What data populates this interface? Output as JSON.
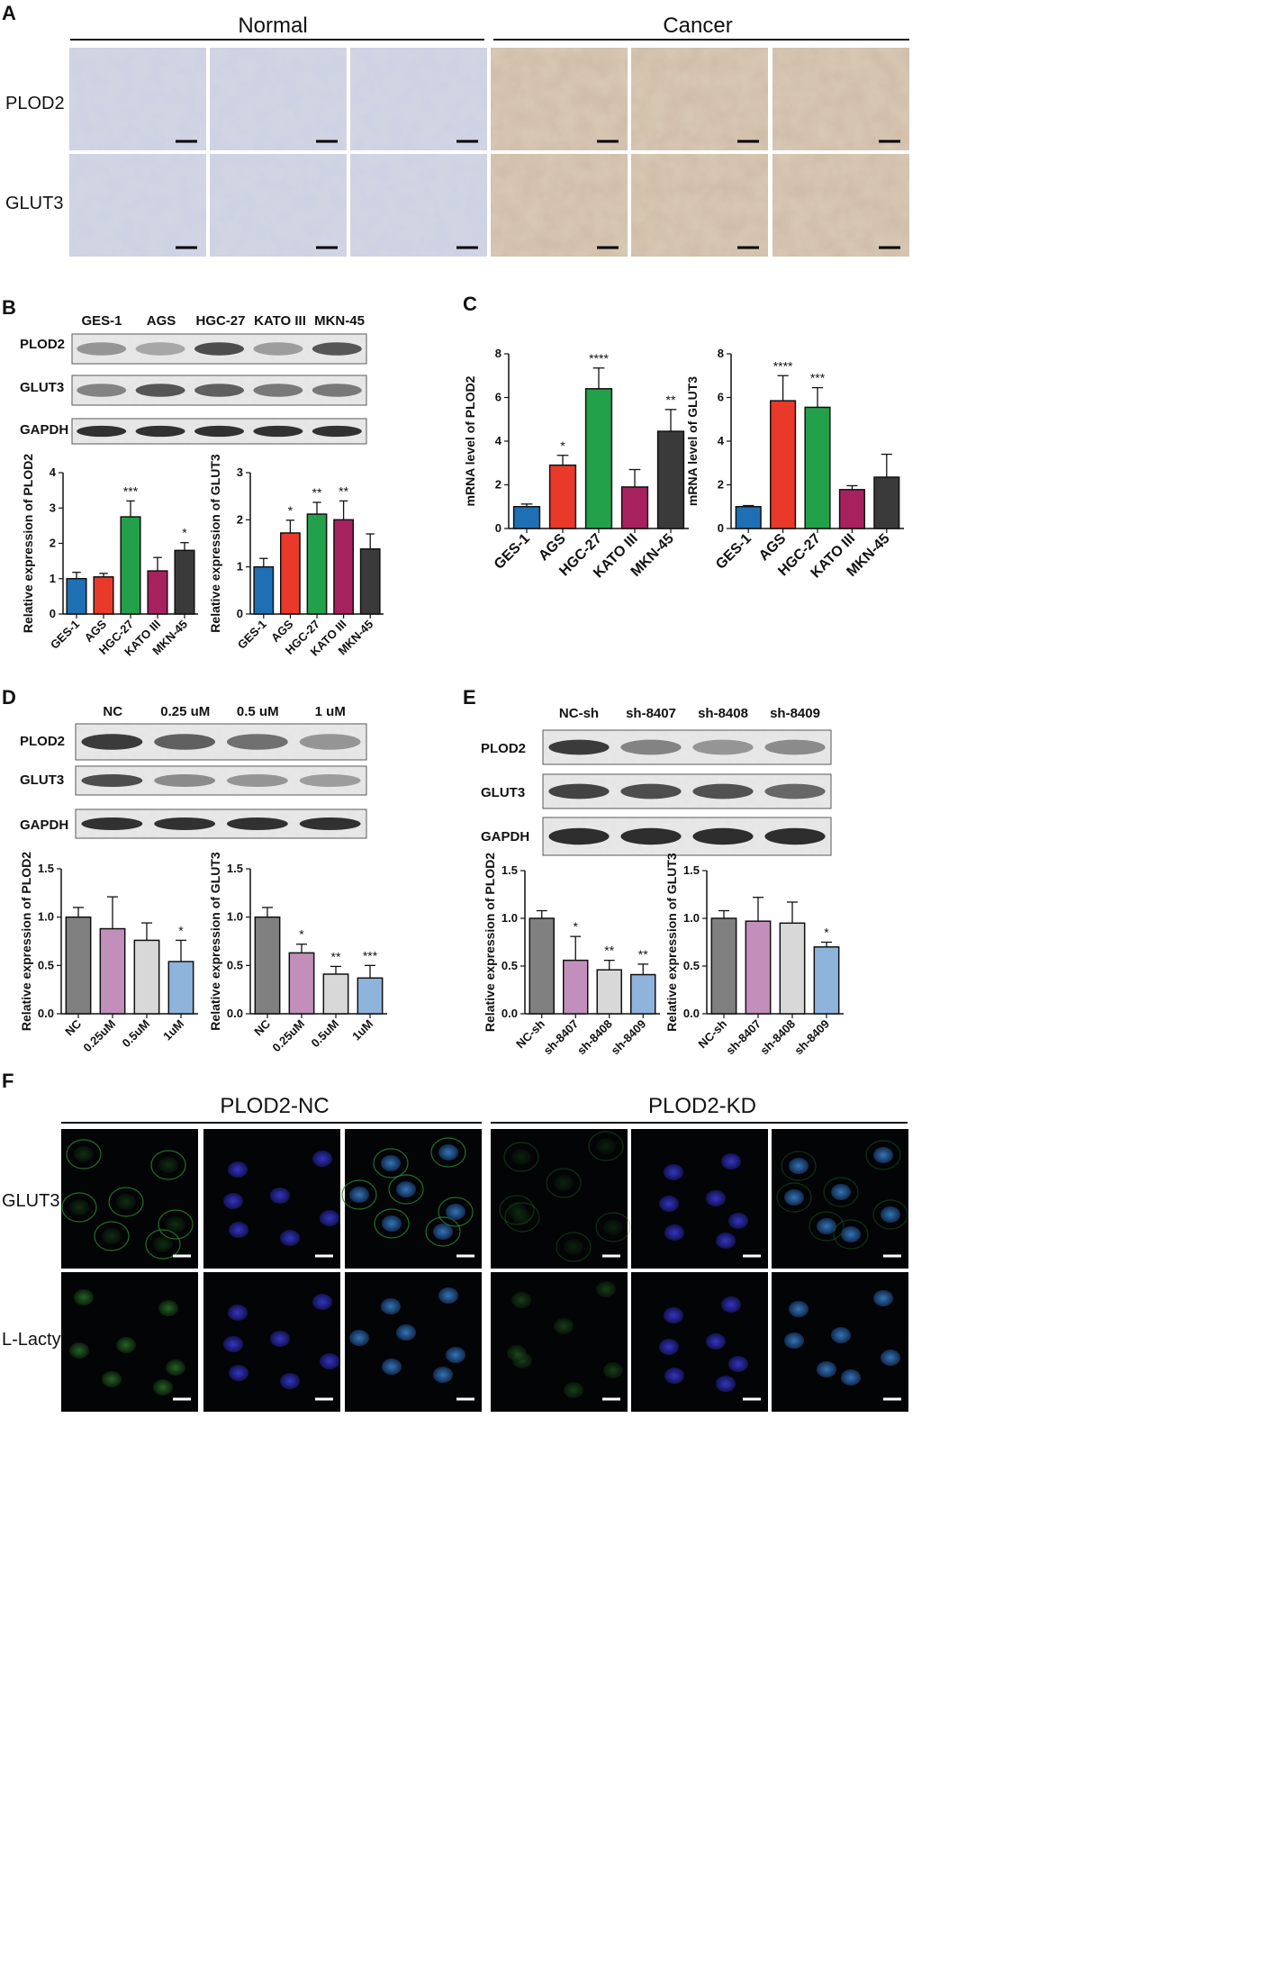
{
  "panelA": {
    "letter": "A",
    "groups": [
      "Normal",
      "Cancer"
    ],
    "rows": [
      "PLOD2",
      "GLUT3"
    ]
  },
  "panelB": {
    "letter": "B",
    "lanes": [
      "GES-1",
      "AGS",
      "HGC-27",
      "KATO III",
      "MKN-45"
    ],
    "blots": [
      "PLOD2",
      "GLUT3",
      "GAPDH"
    ]
  },
  "panelC": {
    "letter": "C"
  },
  "panelD": {
    "letter": "D",
    "lanes": [
      "NC",
      "0.25 uM",
      "0.5 uM",
      "1 uM"
    ],
    "blots": [
      "PLOD2",
      "GLUT3",
      "GAPDH"
    ]
  },
  "panelE": {
    "letter": "E",
    "lanes": [
      "NC-sh",
      "sh-8407",
      "sh-8408",
      "sh-8409"
    ],
    "blots": [
      "PLOD2",
      "GLUT3",
      "GAPDH"
    ]
  },
  "panelF": {
    "letter": "F",
    "groups": [
      "PLOD2-NC",
      "PLOD2-KD"
    ],
    "rows": [
      "GLUT3",
      "L-Lactyl"
    ]
  },
  "chart_data": [
    {
      "id": "B1",
      "type": "bar",
      "categories": [
        "GES-1",
        "AGS",
        "HGC-27",
        "KATO III",
        "MKN-45"
      ],
      "values": [
        1.0,
        1.05,
        2.75,
        1.22,
        1.8
      ],
      "errors": [
        0.18,
        0.1,
        0.45,
        0.38,
        0.22
      ],
      "stars": [
        "",
        "",
        "***",
        "",
        "*"
      ],
      "ylabel": "Relative expression of PLOD2",
      "ylim": [
        0,
        4
      ],
      "yticks": [
        "0",
        "1",
        "2",
        "3",
        "4"
      ],
      "colors": [
        "#1f6fb5",
        "#e8392b",
        "#22a14a",
        "#a8215f",
        "#3a3a3a"
      ]
    },
    {
      "id": "B2",
      "type": "bar",
      "categories": [
        "GES-1",
        "AGS",
        "HGC-27",
        "KATO III",
        "MKN-45"
      ],
      "values": [
        1.0,
        1.72,
        2.12,
        2.0,
        1.38
      ],
      "errors": [
        0.18,
        0.27,
        0.25,
        0.4,
        0.32
      ],
      "stars": [
        "",
        "*",
        "**",
        "**",
        ""
      ],
      "ylabel": "Relative expression of GLUT3",
      "ylim": [
        0,
        3
      ],
      "yticks": [
        "0",
        "1",
        "2",
        "3"
      ],
      "colors": [
        "#1f6fb5",
        "#e8392b",
        "#22a14a",
        "#a8215f",
        "#3a3a3a"
      ]
    },
    {
      "id": "C1",
      "type": "bar",
      "categories": [
        "GES-1",
        "AGS",
        "HGC-27",
        "KATO III",
        "MKN-45"
      ],
      "values": [
        1.0,
        2.9,
        6.4,
        1.9,
        4.45
      ],
      "errors": [
        0.12,
        0.45,
        0.95,
        0.8,
        1.0
      ],
      "stars": [
        "",
        "*",
        "****",
        "",
        "**"
      ],
      "ylabel": "mRNA level of PLOD2",
      "ylim": [
        0,
        8
      ],
      "yticks": [
        "0",
        "2",
        "4",
        "6",
        "8"
      ],
      "colors": [
        "#1f6fb5",
        "#e8392b",
        "#22a14a",
        "#a8215f",
        "#3a3a3a"
      ]
    },
    {
      "id": "C2",
      "type": "bar",
      "categories": [
        "GES-1",
        "AGS",
        "HGC-27",
        "KATO III",
        "MKN-45"
      ],
      "values": [
        1.0,
        5.85,
        5.55,
        1.78,
        2.35
      ],
      "errors": [
        0.05,
        1.15,
        0.9,
        0.18,
        1.05
      ],
      "stars": [
        "",
        "****",
        "***",
        "",
        ""
      ],
      "ylabel": "mRNA level of GLUT3",
      "ylim": [
        0,
        8
      ],
      "yticks": [
        "0",
        "2",
        "4",
        "6",
        "8"
      ],
      "colors": [
        "#1f6fb5",
        "#e8392b",
        "#22a14a",
        "#a8215f",
        "#3a3a3a"
      ]
    },
    {
      "id": "D1",
      "type": "bar",
      "categories": [
        "NC",
        "0.25uM",
        "0.5uM",
        "1uM"
      ],
      "values": [
        1.0,
        0.88,
        0.76,
        0.54
      ],
      "errors": [
        0.1,
        0.33,
        0.18,
        0.22
      ],
      "stars": [
        "",
        "",
        "",
        "*"
      ],
      "ylabel": "Relative expression of PLOD2",
      "ylim": [
        0,
        1.5
      ],
      "yticks": [
        "0.0",
        "0.5",
        "1.0",
        "1.5"
      ],
      "colors": [
        "#808080",
        "#c28fba",
        "#d8d8d8",
        "#8fb4dc"
      ]
    },
    {
      "id": "D2",
      "type": "bar",
      "categories": [
        "NC",
        "0.25uM",
        "0.5uM",
        "1uM"
      ],
      "values": [
        1.0,
        0.63,
        0.41,
        0.37
      ],
      "errors": [
        0.1,
        0.09,
        0.08,
        0.13
      ],
      "stars": [
        "",
        "*",
        "**",
        "***"
      ],
      "ylabel": "Relative expression of GLUT3",
      "ylim": [
        0,
        1.5
      ],
      "yticks": [
        "0.0",
        "0.5",
        "1.0",
        "1.5"
      ],
      "colors": [
        "#808080",
        "#c28fba",
        "#d8d8d8",
        "#8fb4dc"
      ]
    },
    {
      "id": "E1",
      "type": "bar",
      "categories": [
        "NC-sh",
        "sh-8407",
        "sh-8408",
        "sh-8409"
      ],
      "values": [
        1.0,
        0.56,
        0.46,
        0.41
      ],
      "errors": [
        0.08,
        0.25,
        0.1,
        0.11
      ],
      "stars": [
        "",
        "*",
        "**",
        "**"
      ],
      "ylabel": "Relative expression of PLOD2",
      "ylim": [
        0,
        1.5
      ],
      "yticks": [
        "0.0",
        "0.5",
        "1.0",
        "1.5"
      ],
      "colors": [
        "#808080",
        "#c28fba",
        "#d8d8d8",
        "#8fb4dc"
      ]
    },
    {
      "id": "E2",
      "type": "bar",
      "categories": [
        "NC-sh",
        "sh-8407",
        "sh-8408",
        "sh-8409"
      ],
      "values": [
        1.0,
        0.97,
        0.95,
        0.7
      ],
      "errors": [
        0.08,
        0.25,
        0.22,
        0.05
      ],
      "stars": [
        "",
        "",
        "",
        "*"
      ],
      "ylabel": "Relative expression of GLUT3",
      "ylim": [
        0,
        1.5
      ],
      "yticks": [
        "0.0",
        "0.5",
        "1.0",
        "1.5"
      ],
      "colors": [
        "#808080",
        "#c28fba",
        "#d8d8d8",
        "#8fb4dc"
      ]
    }
  ]
}
